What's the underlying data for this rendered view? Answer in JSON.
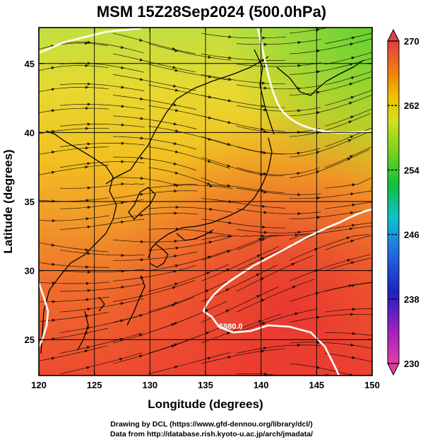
{
  "title": "MSM 15Z28Sep2024 (500.0hPa)",
  "axes": {
    "x_label": "Longitude (degrees)",
    "y_label": "Latitude  (degrees)",
    "x_ticks": [
      "120",
      "125",
      "130",
      "135",
      "140",
      "145",
      "150"
    ],
    "y_ticks": [
      "25",
      "30",
      "35",
      "40",
      "45"
    ],
    "x_range": [
      120,
      150
    ],
    "y_range": [
      22.4,
      47.6
    ]
  },
  "colorbar": {
    "ticks": [
      "270",
      "262",
      "254",
      "246",
      "238",
      "230"
    ],
    "min": 230,
    "max": 270,
    "colors": [
      "#e0407a",
      "#c030c0",
      "#2020c0",
      "#2070e0",
      "#10c0d0",
      "#10c040",
      "#60d020",
      "#c0e020",
      "#f0d000",
      "#f0a000",
      "#f07020",
      "#e04040"
    ]
  },
  "contour_label": "5880.0",
  "footer": {
    "line1": "Drawing by DCL (https://www.gfd-dennou.org/library/dcl/)",
    "line2": "Data from http://database.rish.kyoto-u.ac.jp/arch/jmadata/"
  }
}
